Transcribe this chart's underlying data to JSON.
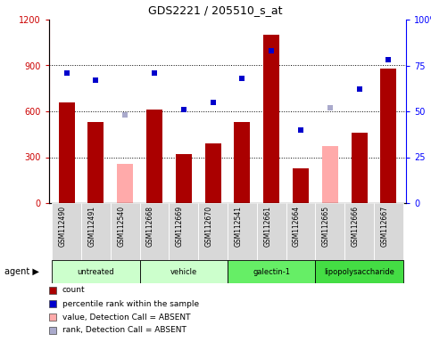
{
  "title": "GDS2221 / 205510_s_at",
  "samples": [
    "GSM112490",
    "GSM112491",
    "GSM112540",
    "GSM112668",
    "GSM112669",
    "GSM112670",
    "GSM112541",
    "GSM112661",
    "GSM112664",
    "GSM112665",
    "GSM112666",
    "GSM112667"
  ],
  "group_boundaries": [
    0,
    3,
    6,
    9,
    12
  ],
  "group_labels": [
    "untreated",
    "vehicle",
    "galectin-1",
    "lipopolysaccharide"
  ],
  "group_colors": [
    "#ccffcc",
    "#ccffcc",
    "#66ee66",
    "#44dd44"
  ],
  "count_values": [
    660,
    530,
    null,
    610,
    320,
    390,
    530,
    1100,
    230,
    null,
    460,
    880
  ],
  "count_absent": [
    null,
    null,
    255,
    null,
    null,
    null,
    null,
    null,
    null,
    370,
    null,
    null
  ],
  "rank_values": [
    71,
    67,
    null,
    71,
    51,
    55,
    68,
    83,
    40,
    null,
    62,
    78
  ],
  "rank_absent": [
    null,
    null,
    48,
    null,
    null,
    null,
    null,
    null,
    null,
    52,
    null,
    null
  ],
  "ylim_left": [
    0,
    1200
  ],
  "ylim_right": [
    0,
    100
  ],
  "yticks_left": [
    0,
    300,
    600,
    900,
    1200
  ],
  "yticks_right": [
    0,
    25,
    50,
    75,
    100
  ],
  "yticklabels_left": [
    "0",
    "300",
    "600",
    "900",
    "1200"
  ],
  "yticklabels_right": [
    "0",
    "25",
    "50",
    "75",
    "100%"
  ],
  "bar_color_present": "#aa0000",
  "bar_color_absent": "#ffaaaa",
  "scatter_color_present": "#0000cc",
  "scatter_color_absent": "#aaaacc",
  "legend_items": [
    {
      "color": "#aa0000",
      "label": "count"
    },
    {
      "color": "#0000cc",
      "label": "percentile rank within the sample"
    },
    {
      "color": "#ffaaaa",
      "label": "value, Detection Call = ABSENT"
    },
    {
      "color": "#aaaacc",
      "label": "rank, Detection Call = ABSENT"
    }
  ],
  "fig_width": 4.83,
  "fig_height": 3.84,
  "dpi": 100
}
